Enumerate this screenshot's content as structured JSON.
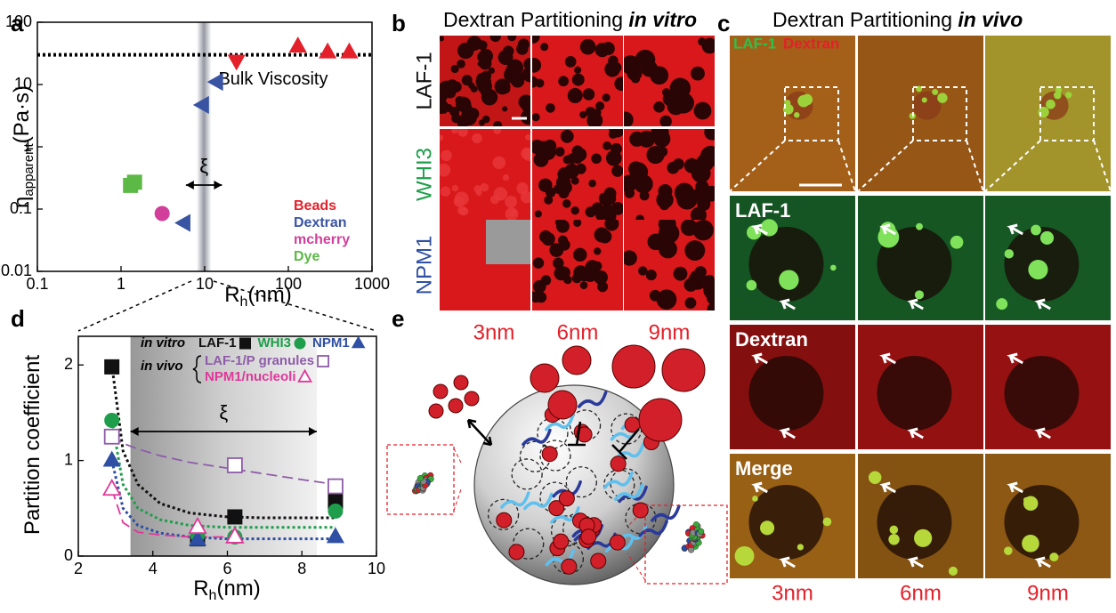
{
  "panel_letters": [
    "a",
    "b",
    "c",
    "d",
    "e"
  ],
  "chart_data": [
    {
      "type": "scatter",
      "x_log": true,
      "y_log": true,
      "xlim": [
        0.1,
        1000
      ],
      "ylim": [
        0.01,
        100
      ],
      "xticks": [
        0.1,
        1,
        10,
        100,
        1000
      ],
      "yticks": [
        0.01,
        0.1,
        1,
        10,
        100
      ],
      "x_label": {
        "symbol": "R",
        "subscript": "h",
        "unit": "(nm)"
      },
      "y_label": {
        "symbol": "η",
        "subscript": "apparent",
        "unit": "(Pa·s)"
      },
      "band": {
        "label": "ξ",
        "range": [
          8,
          12
        ]
      },
      "reference_line": {
        "label": "Bulk Viscosity",
        "value": 30
      },
      "series": [
        {
          "name": "Beads",
          "color": "#e4202a",
          "markers": [
            "triangle-down",
            "triangle",
            "triangle",
            "triangle"
          ],
          "x": [
            24,
            130,
            295,
            535
          ],
          "values": [
            24,
            41,
            33,
            33
          ]
        },
        {
          "name": "Dextran",
          "color": "#3a54a4",
          "marker": "triangle-left",
          "x": [
            5.7,
            9.5,
            14
          ],
          "values": [
            0.06,
            4.7,
            11
          ]
        },
        {
          "name": "mcherry",
          "color": "#d23f9a",
          "marker": "circle",
          "x": [
            3.1
          ],
          "values": [
            0.085
          ]
        },
        {
          "name": "Dye",
          "color": "#5cb946",
          "marker": "square",
          "x": [
            1.3,
            1.45
          ],
          "values": [
            0.24,
            0.27
          ]
        }
      ]
    },
    {
      "type": "scatter",
      "xlim": [
        2,
        10
      ],
      "ylim": [
        0,
        2.3
      ],
      "xticks": [
        2,
        4,
        6,
        8,
        10
      ],
      "yticks": [
        0,
        1,
        2
      ],
      "x_label": {
        "symbol": "R",
        "subscript": "h",
        "unit": "(nm)"
      },
      "y_label": {
        "symbol": "Partition coefficient"
      },
      "band": {
        "label": "ξ",
        "range": [
          3.4,
          8.4
        ]
      },
      "legend_groups": [
        "in vitro",
        "in vivo"
      ],
      "series": [
        {
          "name": "LAF-1",
          "group": 0,
          "color": "#111111",
          "marker": "square",
          "x": [
            2.9,
            5.2,
            6.2,
            8.9
          ],
          "values": [
            1.98,
            0.18,
            0.41,
            0.57
          ]
        },
        {
          "name": "WHI3",
          "group": 0,
          "color": "#1e9e4a",
          "marker": "circle",
          "x": [
            2.9,
            5.2,
            6.2,
            8.9
          ],
          "values": [
            1.42,
            0.22,
            0.2,
            0.47
          ]
        },
        {
          "name": "NPM1",
          "group": 0,
          "color": "#2e4fa3",
          "marker": "triangle",
          "x": [
            2.9,
            5.2,
            6.2,
            8.9
          ],
          "values": [
            1.0,
            0.17,
            0.2,
            0.2
          ]
        },
        {
          "name": "LAF-1/P granules",
          "group": 1,
          "color": "#8e5ca8",
          "marker": "square",
          "open": true,
          "x": [
            2.9,
            6.2,
            8.9
          ],
          "values": [
            1.25,
            0.95,
            0.73
          ]
        },
        {
          "name": "NPM1/nucleoli",
          "group": 1,
          "color": "#e0389a",
          "marker": "triangle",
          "open": true,
          "x": [
            2.9,
            5.2,
            6.2
          ],
          "values": [
            0.7,
            0.3,
            0.2
          ]
        }
      ],
      "fits": [
        {
          "color": "#111111",
          "dash": "dotted",
          "x": [
            2.9,
            3.2,
            3.6,
            4.2,
            5,
            6,
            7,
            8,
            8.9
          ],
          "values": [
            2.0,
            1.1,
            0.75,
            0.55,
            0.45,
            0.41,
            0.4,
            0.4,
            0.4
          ]
        },
        {
          "color": "#1e9e4a",
          "dash": "dotted",
          "x": [
            2.9,
            3.2,
            3.6,
            4.2,
            5,
            6,
            7,
            8,
            8.9
          ],
          "values": [
            1.42,
            0.75,
            0.5,
            0.38,
            0.32,
            0.3,
            0.3,
            0.3,
            0.3
          ]
        },
        {
          "color": "#2e4fa3",
          "dash": "dotted",
          "x": [
            2.9,
            3.2,
            3.6,
            4.2,
            5,
            6,
            7,
            8,
            8.9
          ],
          "values": [
            1.0,
            0.5,
            0.32,
            0.24,
            0.2,
            0.18,
            0.18,
            0.18,
            0.18
          ]
        },
        {
          "color": "#8e5ca8",
          "dash": "dashed",
          "x": [
            2.9,
            3.2,
            3.6,
            4.2,
            5,
            6,
            7,
            8,
            8.9
          ],
          "values": [
            1.25,
            1.18,
            1.12,
            1.05,
            0.98,
            0.92,
            0.86,
            0.8,
            0.75
          ]
        },
        {
          "color": "#e0389a",
          "dash": "dashed",
          "x": [
            2.9,
            3.2,
            3.6,
            4.2,
            5,
            6
          ],
          "values": [
            0.7,
            0.35,
            0.25,
            0.22,
            0.2,
            0.2
          ]
        }
      ]
    }
  ],
  "panel_b": {
    "title": {
      "text": "Dextran Partitioning",
      "emphasis": "in vitro"
    },
    "rows": [
      "LAF-1",
      "WHI3",
      "NPM1"
    ],
    "row_colors": [
      "#111111",
      "#1e9e4a",
      "#2e4fa3"
    ],
    "columns": [
      "3nm",
      "6nm",
      "9nm"
    ]
  },
  "panel_c": {
    "title": {
      "text": "Dextran Partitioning",
      "emphasis": "in vivo"
    },
    "overlay": [
      "LAF-1",
      "Dextran"
    ],
    "overlay_colors": [
      "#2fc14a",
      "#e4202a"
    ],
    "rows": [
      "LAF-1",
      "Dextran",
      "Merge"
    ],
    "columns": [
      "3nm",
      "6nm",
      "9nm"
    ]
  }
}
